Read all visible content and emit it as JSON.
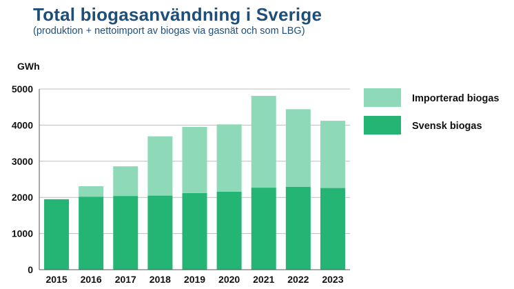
{
  "title": "Total biogasanvändning i Sverige",
  "subtitle": "(produktion + nettoimport av biogas via gasnät och som LBG)",
  "colors": {
    "title": "#1f4e79",
    "svensk": "#24b574",
    "importerad": "#8ed9b7",
    "grid": "#bdbdbd",
    "axis": "#555555"
  },
  "chart_data": {
    "type": "bar",
    "stacked": true,
    "title": "Total biogasanvändning i Sverige",
    "subtitle": "(produktion + nettoimport av biogas via gasnät och som LBG)",
    "ylabel": "GWh",
    "xlabel": "",
    "ylim": [
      0,
      5000
    ],
    "yticks": [
      0,
      1000,
      2000,
      3000,
      4000,
      5000
    ],
    "grid": true,
    "legend_position": "right",
    "categories": [
      "2015",
      "2016",
      "2017",
      "2018",
      "2019",
      "2020",
      "2021",
      "2022",
      "2023"
    ],
    "series": [
      {
        "name": "Svensk biogas",
        "values": [
          1950,
          2020,
          2040,
          2050,
          2120,
          2160,
          2270,
          2290,
          2260
        ]
      },
      {
        "name": "Importerad biogas",
        "values": [
          0,
          290,
          820,
          1640,
          1830,
          1860,
          2540,
          2150,
          1860
        ]
      }
    ],
    "legend": [
      "Importerad biogas",
      "Svensk biogas"
    ]
  }
}
